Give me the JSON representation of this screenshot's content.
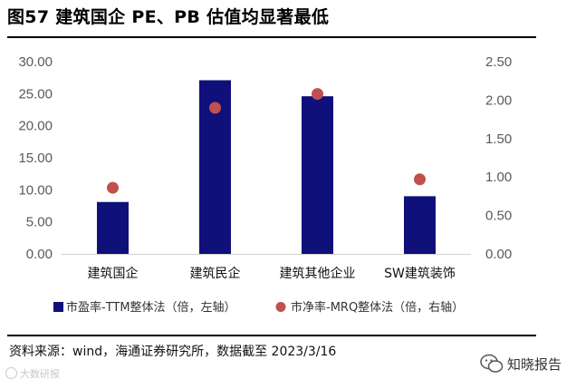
{
  "figure": {
    "title": "图57 建筑国企 PE、PB 估值均显著最低",
    "source": "资料来源：wind，海通证券研究所，数据截至 2023/3/16",
    "watermark_left": "大数研报",
    "watermark_right": "知晓报告"
  },
  "chart_data": {
    "type": "bar",
    "categories": [
      "建筑国企",
      "建筑民企",
      "建筑其他企业",
      "SW建筑装饰"
    ],
    "series": [
      {
        "name": "市盈率-TTM整体法（倍，左轴）",
        "type": "bar",
        "axis": "left",
        "color": "#10107a",
        "values": [
          8.1,
          27.1,
          24.6,
          9.0
        ]
      },
      {
        "name": "市净率-MRQ整体法（倍，右轴）",
        "type": "scatter",
        "axis": "right",
        "color": "#c0504d",
        "values": [
          0.86,
          1.9,
          2.08,
          0.97
        ]
      }
    ],
    "y_left": {
      "ticks": [
        "0.00",
        "5.00",
        "10.00",
        "15.00",
        "20.00",
        "25.00",
        "30.00"
      ],
      "lim": [
        0,
        30
      ]
    },
    "y_right": {
      "ticks": [
        "0.00",
        "0.50",
        "1.00",
        "1.50",
        "2.00",
        "2.50"
      ],
      "lim": [
        0,
        2.5
      ]
    },
    "grid": false,
    "legend_position": "bottom"
  }
}
